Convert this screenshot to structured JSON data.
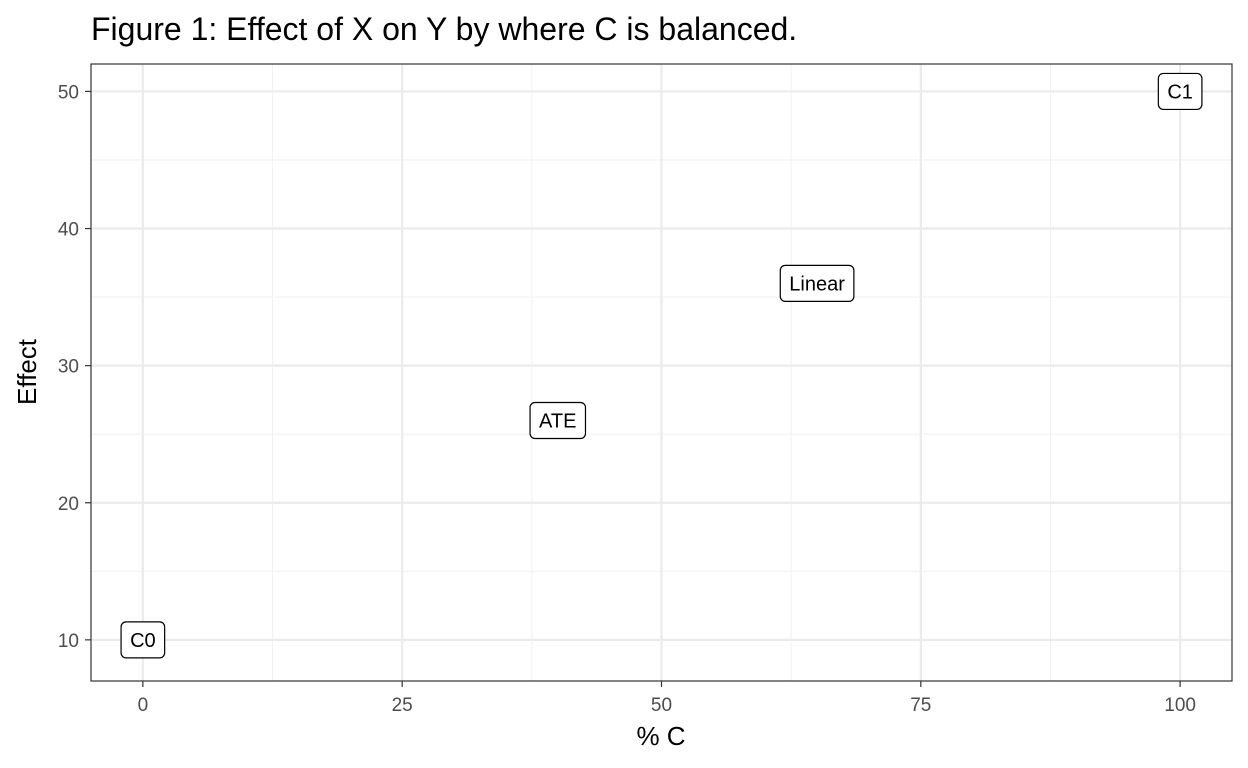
{
  "chart_data": {
    "type": "scatter",
    "title": "Figure 1: Effect of X on Y by where C is balanced.",
    "xlabel": "% C",
    "ylabel": "Effect",
    "xlim": [
      -5,
      105
    ],
    "ylim": [
      7,
      52
    ],
    "x_ticks": [
      0,
      25,
      50,
      75,
      100
    ],
    "y_ticks": [
      10,
      20,
      30,
      40,
      50
    ],
    "grid": true,
    "points": [
      {
        "label": "C0",
        "x": 0,
        "y": 10
      },
      {
        "label": "ATE",
        "x": 40,
        "y": 26
      },
      {
        "label": "Linear",
        "x": 65,
        "y": 36
      },
      {
        "label": "C1",
        "x": 100,
        "y": 50
      }
    ]
  }
}
